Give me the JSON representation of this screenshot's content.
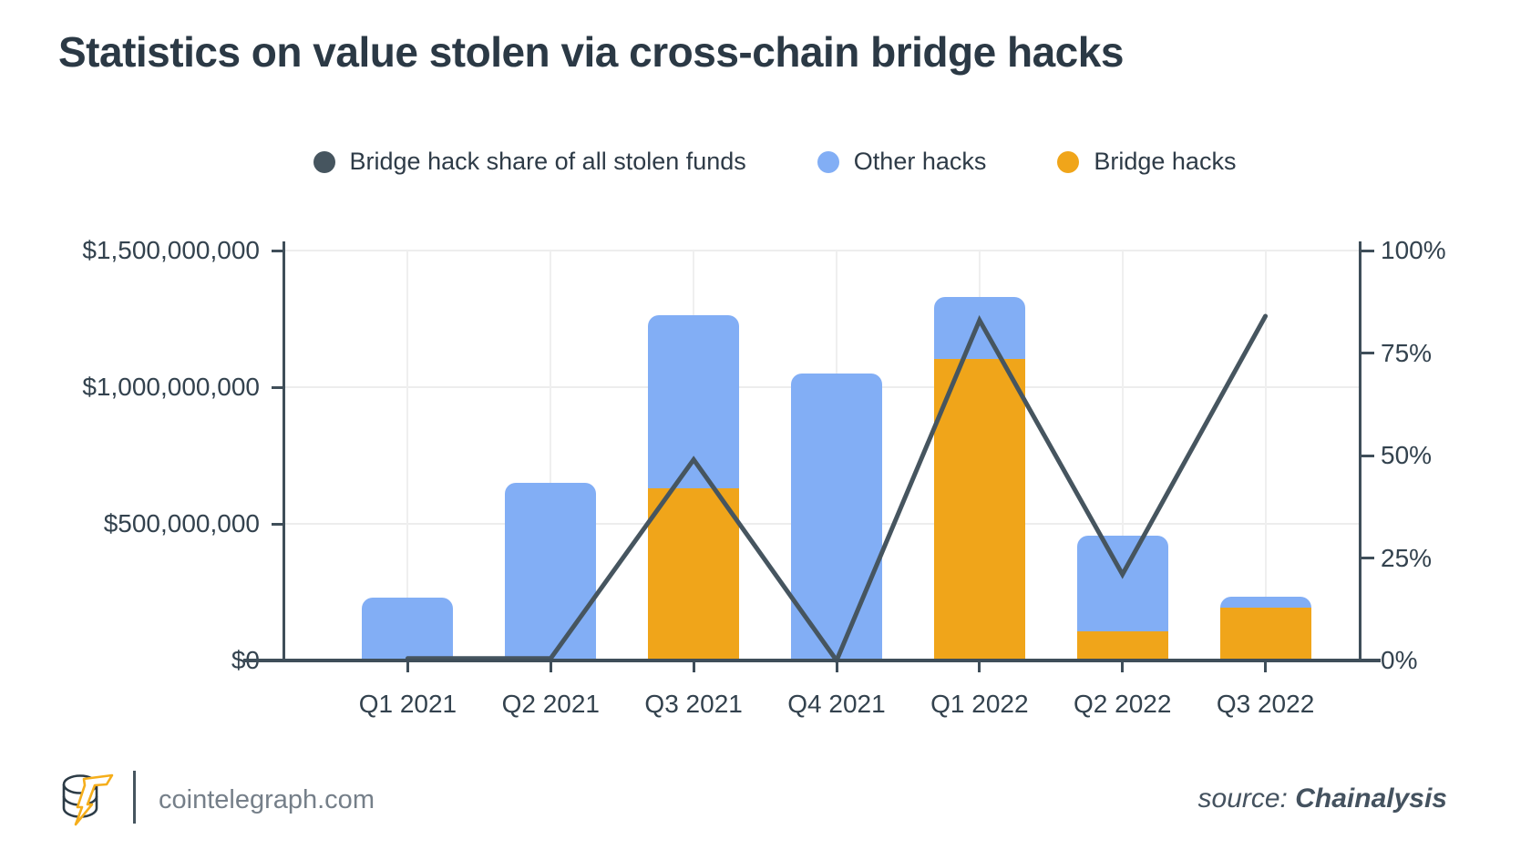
{
  "title": "Statistics on value stolen via cross-chain bridge hacks",
  "legend": [
    {
      "label": "Bridge hack share of all stolen funds",
      "color": "#46555f",
      "icon": "circle-dot-icon"
    },
    {
      "label": "Other hacks",
      "color": "#82aef5",
      "icon": "circle-dot-icon"
    },
    {
      "label": "Bridge hacks",
      "color": "#f0a51a",
      "icon": "circle-dot-icon"
    }
  ],
  "chart_data": {
    "type": "combo-stacked-bar-line",
    "categories": [
      "Q1 2021",
      "Q2 2021",
      "Q3 2021",
      "Q4 2021",
      "Q1 2022",
      "Q2 2022",
      "Q3 2022"
    ],
    "series": [
      {
        "name": "Bridge hacks",
        "type": "bar",
        "stack_order": "bottom",
        "color": "#f0a51a",
        "values_usd_millions": [
          0,
          0,
          630,
          0,
          1105,
          107,
          195
        ]
      },
      {
        "name": "Other hacks",
        "type": "bar",
        "stack_order": "top",
        "color": "#82aef5",
        "values_usd_millions": [
          230,
          650,
          635,
          1050,
          225,
          350,
          40
        ]
      },
      {
        "name": "Bridge hack share of all stolen funds",
        "type": "line",
        "color": "#46555f",
        "values_percent": [
          0.5,
          0.5,
          49,
          0,
          83,
          21,
          84
        ]
      }
    ],
    "left_axis": {
      "title": "",
      "min": 0,
      "max": 1500000000,
      "ticks": [
        "$1,500,000,000",
        "$1,000,000,000",
        "$500,000,000",
        "$0"
      ]
    },
    "right_axis": {
      "title": "",
      "min": 0,
      "max": 100,
      "ticks": [
        "100%",
        "75%",
        "50%",
        "25%",
        "0%"
      ]
    },
    "grid": true,
    "legend_position": "top"
  },
  "footer": {
    "brand": "cointelegraph.com",
    "logo_icon": "coin-stack-lightning-icon",
    "source_label": "source:",
    "source_name": "Chainalysis"
  },
  "colors": {
    "background": "#ffffff",
    "title_text": "#2b3945",
    "axis_text": "#33424e",
    "axis_line": "#3f4e59",
    "gridline": "#ededed",
    "bar_other": "#82aef5",
    "bar_bridge": "#f0a51a",
    "share_line": "#46555f",
    "footer_text": "#757f89",
    "source_text": "#44525f",
    "logo_bolt": "#f5ae1b"
  }
}
